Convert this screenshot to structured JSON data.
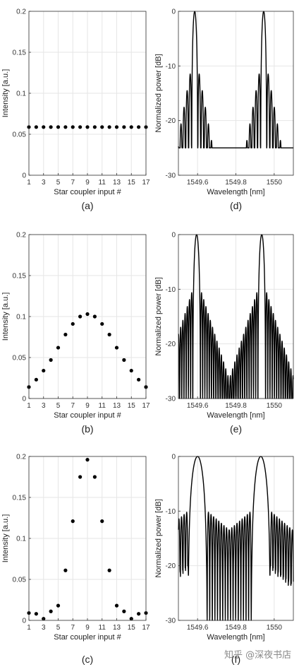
{
  "chart_data": [
    {
      "id": "a",
      "type": "scatter",
      "panel_label": "(a)",
      "xlabel": "Star coupler input #",
      "ylabel": "Intensity [a.u.]",
      "xlim": [
        1,
        17
      ],
      "ylim": [
        0,
        0.2
      ],
      "xticks": [
        1,
        3,
        5,
        7,
        9,
        11,
        13,
        15,
        17
      ],
      "yticks": [
        0,
        0.05,
        0.1,
        0.15,
        0.2
      ],
      "grid": true,
      "x": [
        1,
        2,
        3,
        4,
        5,
        6,
        7,
        8,
        9,
        10,
        11,
        12,
        13,
        14,
        15,
        16,
        17
      ],
      "y": [
        0.0588,
        0.0588,
        0.0588,
        0.0588,
        0.0588,
        0.0588,
        0.0588,
        0.0588,
        0.0588,
        0.0588,
        0.0588,
        0.0588,
        0.0588,
        0.0588,
        0.0588,
        0.0588,
        0.0588
      ]
    },
    {
      "id": "d",
      "type": "line",
      "panel_label": "(d)",
      "xlabel": "Wavelength [nm]",
      "ylabel": "Normalized power [dB]",
      "xlim": [
        1549.5,
        1550.1
      ],
      "ylim": [
        -30,
        0
      ],
      "xticks": [
        1549.6,
        1549.8,
        1550
      ],
      "yticks": [
        -30,
        -20,
        -10,
        0
      ],
      "grid": true,
      "peaks": [
        1549.585,
        1549.945
      ],
      "main_lobe_halfwidth_nm": 0.016,
      "sidelobe_period_nm": 0.016,
      "sidelobe_decay_db_per_nm": 190,
      "floor_db": -25
    },
    {
      "id": "b",
      "type": "scatter",
      "panel_label": "(b)",
      "xlabel": "Star coupler input #",
      "ylabel": "Intensity [a.u.]",
      "xlim": [
        1,
        17
      ],
      "ylim": [
        0,
        0.2
      ],
      "xticks": [
        1,
        3,
        5,
        7,
        9,
        11,
        13,
        15,
        17
      ],
      "yticks": [
        0,
        0.05,
        0.1,
        0.15,
        0.2
      ],
      "grid": true,
      "x": [
        1,
        2,
        3,
        4,
        5,
        6,
        7,
        8,
        9,
        10,
        11,
        12,
        13,
        14,
        15,
        16,
        17
      ],
      "y": [
        0.014,
        0.023,
        0.034,
        0.047,
        0.062,
        0.078,
        0.091,
        0.1,
        0.103,
        0.1,
        0.091,
        0.078,
        0.062,
        0.047,
        0.034,
        0.023,
        0.014
      ]
    },
    {
      "id": "e",
      "type": "line",
      "panel_label": "(e)",
      "xlabel": "Wavelength [nm]",
      "ylabel": "Normalized power [dB]",
      "xlim": [
        1549.5,
        1550.1
      ],
      "ylim": [
        -30,
        0
      ],
      "xticks": [
        1549.6,
        1549.8,
        1550
      ],
      "yticks": [
        -30,
        -20,
        -10,
        0
      ],
      "grid": true,
      "peaks": [
        1549.595,
        1549.935
      ],
      "main_lobe_halfwidth_nm": 0.02,
      "sidelobe_period_nm": 0.0115,
      "sidelobe_decay_db_per_nm": 110,
      "floor_db": -40
    },
    {
      "id": "c",
      "type": "scatter",
      "panel_label": "(c)",
      "xlabel": "Star coupler input #",
      "ylabel": "Intensity [a.u.]",
      "xlim": [
        1,
        17
      ],
      "ylim": [
        0,
        0.2
      ],
      "xticks": [
        1,
        3,
        5,
        7,
        9,
        11,
        13,
        15,
        17
      ],
      "yticks": [
        0,
        0.05,
        0.1,
        0.15,
        0.2
      ],
      "grid": true,
      "x": [
        1,
        2,
        3,
        4,
        5,
        6,
        7,
        8,
        9,
        10,
        11,
        12,
        13,
        14,
        15,
        16,
        17
      ],
      "y": [
        0.009,
        0.008,
        0.002,
        0.011,
        0.018,
        0.061,
        0.121,
        0.175,
        0.196,
        0.175,
        0.121,
        0.061,
        0.018,
        0.011,
        0.002,
        0.008,
        0.009
      ]
    },
    {
      "id": "f",
      "type": "line",
      "panel_label": "(f)",
      "xlabel": "Wavelength [nm]",
      "ylabel": "Normalized power [dB]",
      "xlim": [
        1549.5,
        1550.1
      ],
      "ylim": [
        -30,
        0
      ],
      "xticks": [
        1549.6,
        1549.8,
        1550
      ],
      "yticks": [
        -30,
        -20,
        -10,
        0
      ],
      "grid": true,
      "peaks": [
        1549.6,
        1549.93
      ],
      "main_lobe_halfwidth_nm": 0.05,
      "sidelobe_period_nm": 0.0135,
      "sidelobe_decay_db_per_nm": 30,
      "floor_db": -40
    }
  ],
  "watermark": "知乎 @深夜书店"
}
